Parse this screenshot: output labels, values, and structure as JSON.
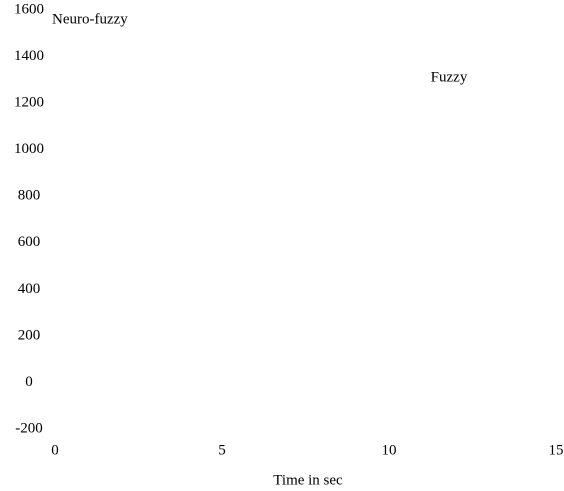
{
  "chart_data": {
    "type": "line",
    "xlabel": "Time in sec",
    "annotations": [
      "Neuro-fuzzy",
      "Fuzzy"
    ],
    "xlim": [
      0,
      15
    ],
    "xticks": [
      0,
      5,
      10,
      15
    ],
    "ylim": [
      -200,
      1600
    ],
    "yticks": [
      -200,
      0,
      200,
      400,
      600,
      800,
      1000,
      1200,
      1400,
      1600
    ],
    "grid": false,
    "series": []
  }
}
